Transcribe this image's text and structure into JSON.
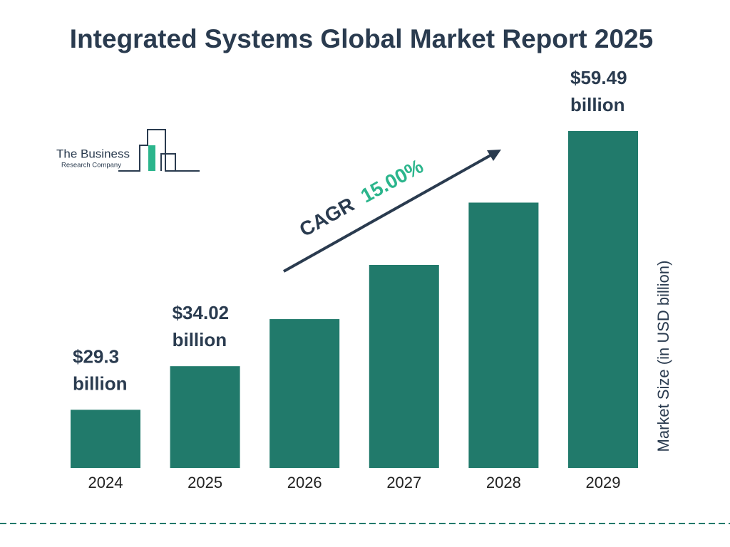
{
  "chart_data": {
    "type": "bar",
    "title": "Integrated Systems Global Market Report 2025",
    "categories": [
      "2024",
      "2025",
      "2026",
      "2027",
      "2028",
      "2029"
    ],
    "values": [
      29.3,
      34.02,
      39.12,
      44.99,
      51.74,
      59.49
    ],
    "value_labels": [
      "$29.3 billion",
      "$34.02 billion",
      null,
      null,
      null,
      "$59.49 billion"
    ],
    "color": "#217a6b",
    "ylim": [
      23,
      59.49
    ],
    "y_axis_label": "Market Size (in USD billion)",
    "annotation": {
      "label": "CAGR",
      "value": "15.00%"
    },
    "logo": {
      "line1": "The Business",
      "line2": "Research Company"
    }
  }
}
